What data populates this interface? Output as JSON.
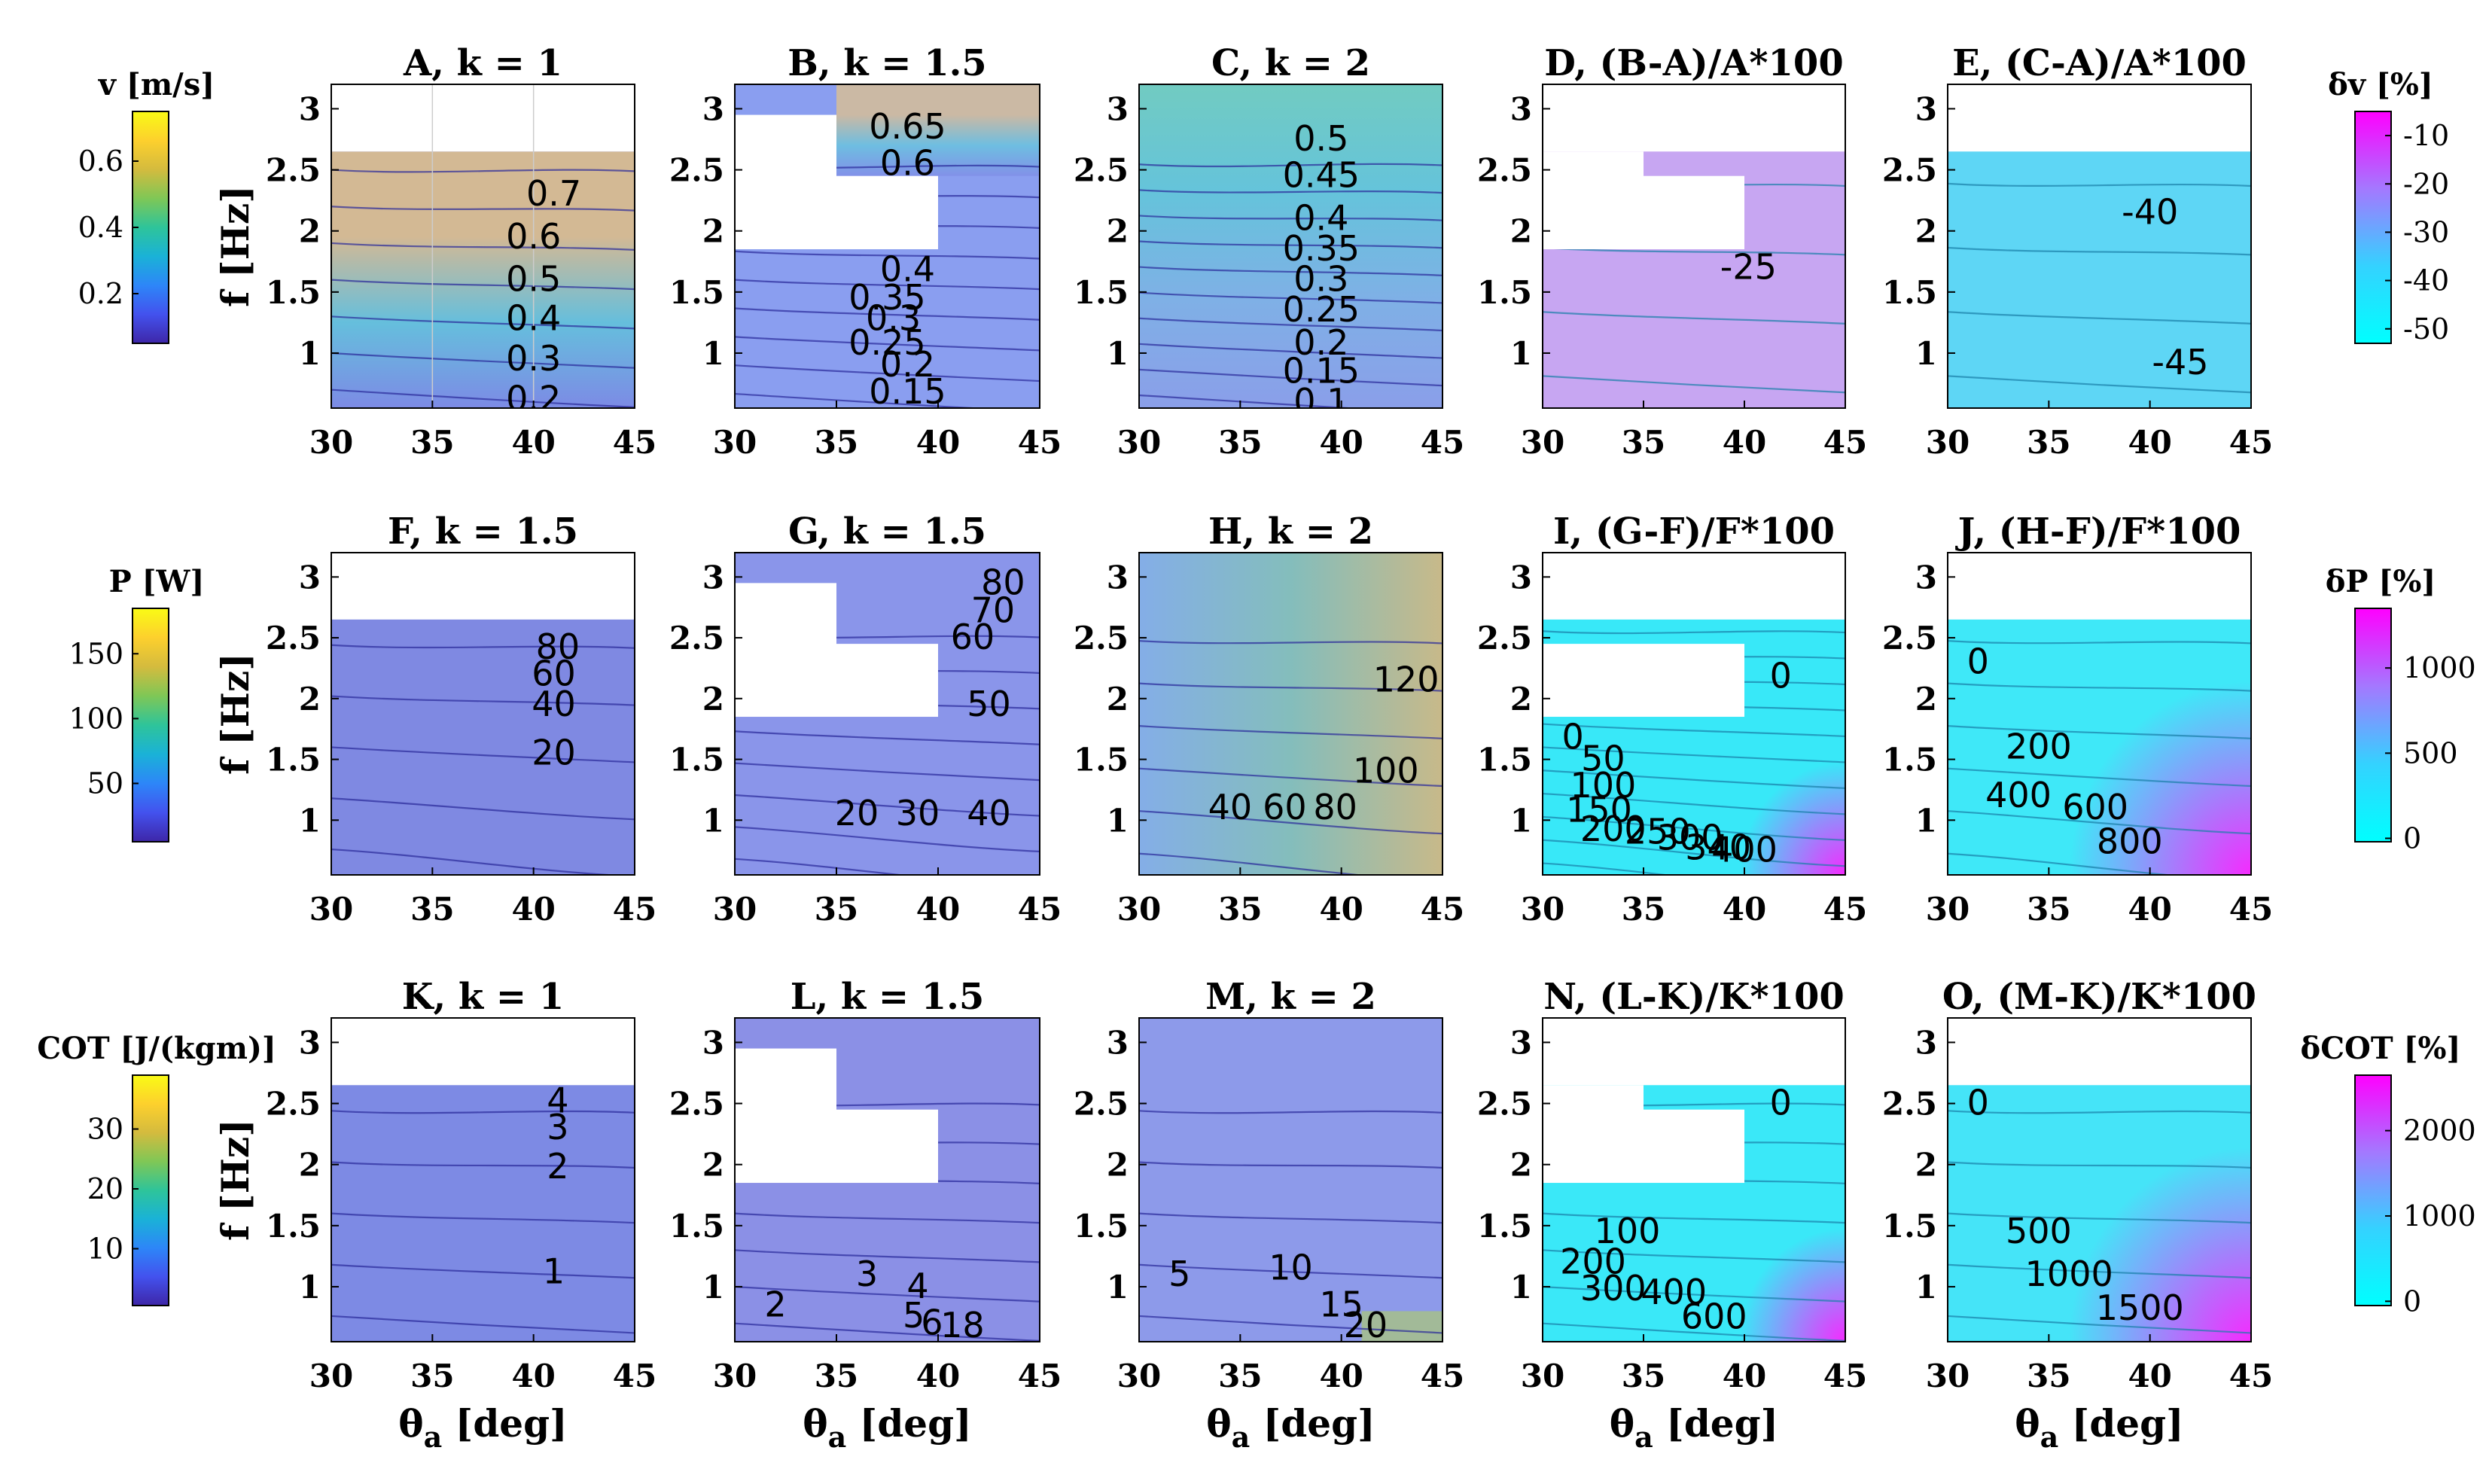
{
  "figure": {
    "rows": [
      {
        "colorbar_left": {
          "label": "v [m/s]",
          "ticks": [
            0.2,
            0.4,
            0.6
          ],
          "range": [
            0.05,
            0.75
          ],
          "palette": "parula"
        },
        "colorbar_right": {
          "label": "δv [%]",
          "ticks": [
            -10,
            -20,
            -30,
            -40,
            -50
          ],
          "range": [
            -53,
            -5
          ],
          "palette": "cool"
        }
      },
      {
        "colorbar_left": {
          "label": "P [W]",
          "ticks": [
            50,
            100,
            150
          ],
          "range": [
            5,
            185
          ],
          "palette": "parula"
        },
        "colorbar_right": {
          "label": "δP [%]",
          "ticks": [
            0,
            500,
            1000
          ],
          "range": [
            -20,
            1350
          ],
          "palette": "cool"
        }
      },
      {
        "colorbar_left": {
          "label": "COT [J/(kgm)]",
          "ticks": [
            10,
            20,
            30
          ],
          "range": [
            0.5,
            39
          ],
          "palette": "parula"
        },
        "colorbar_right": {
          "label": "δCOT [%]",
          "ticks": [
            0,
            1000,
            2000
          ],
          "range": [
            -50,
            2650
          ],
          "palette": "cool"
        }
      }
    ],
    "x_ticks": [
      30,
      35,
      40,
      45
    ],
    "y_ticks": [
      1,
      1.5,
      2,
      2.5,
      3
    ],
    "ylabel": "f [Hz]",
    "xlabel": "θ",
    "xlabel_sub": "a",
    "xlabel_unit": " [deg]"
  },
  "chart_data": [
    {
      "type": "heatmap",
      "title": "A, k = 1",
      "xlim": [
        30,
        45
      ],
      "ylim": [
        0.55,
        3.2
      ],
      "palette": "parula",
      "valid_mask": "f ≤ 2.65 Hz",
      "base_color": "#7b8bea",
      "contour_labels": [
        {
          "text": "0.7",
          "x": 41,
          "y": 2.3
        },
        {
          "text": "0.6",
          "x": 40,
          "y": 1.95
        },
        {
          "text": "0.5",
          "x": 40,
          "y": 1.6
        },
        {
          "text": "0.4",
          "x": 40,
          "y": 1.28
        },
        {
          "text": "0.3",
          "x": 40,
          "y": 0.95
        },
        {
          "text": "0.2",
          "x": 40,
          "y": 0.62
        }
      ]
    },
    {
      "type": "heatmap",
      "title": "B, k = 1.5",
      "xlim": [
        30,
        45
      ],
      "ylim": [
        0.55,
        3.2
      ],
      "palette": "parula",
      "valid_mask": "excludes [30,35]×[1.85,2.95] and [35,40]×[1.85,2.45]",
      "base_color": "#8a9ef0",
      "contour_labels": [
        {
          "text": "0.65",
          "x": 38.5,
          "y": 2.85
        },
        {
          "text": "0.6",
          "x": 38.5,
          "y": 2.55
        },
        {
          "text": "0.4",
          "x": 38.5,
          "y": 1.68
        },
        {
          "text": "0.35",
          "x": 37.5,
          "y": 1.45
        },
        {
          "text": "0.3",
          "x": 37.8,
          "y": 1.28
        },
        {
          "text": "0.25",
          "x": 37.5,
          "y": 1.08
        },
        {
          "text": "0.2",
          "x": 38.5,
          "y": 0.9
        },
        {
          "text": "0.15",
          "x": 38.5,
          "y": 0.68
        }
      ]
    },
    {
      "type": "heatmap",
      "title": "C, k = 2",
      "xlim": [
        30,
        45
      ],
      "ylim": [
        0.55,
        3.2
      ],
      "palette": "parula",
      "valid_mask": "full",
      "base_color": "#7fb0e6",
      "contour_labels": [
        {
          "text": "0.5",
          "x": 39,
          "y": 2.75
        },
        {
          "text": "0.45",
          "x": 39,
          "y": 2.45
        },
        {
          "text": "0.4",
          "x": 39,
          "y": 2.1
        },
        {
          "text": "0.35",
          "x": 39,
          "y": 1.85
        },
        {
          "text": "0.3",
          "x": 39,
          "y": 1.6
        },
        {
          "text": "0.25",
          "x": 39,
          "y": 1.35
        },
        {
          "text": "0.2",
          "x": 39,
          "y": 1.08
        },
        {
          "text": "0.15",
          "x": 39,
          "y": 0.85
        },
        {
          "text": "0.1",
          "x": 39,
          "y": 0.6
        }
      ]
    },
    {
      "type": "heatmap",
      "title": "D, (B-A)/A*100",
      "xlim": [
        30,
        45
      ],
      "ylim": [
        0.55,
        3.2
      ],
      "palette": "cool",
      "valid_mask": "f ≤ 2.65 Hz, excludes [30,35]×[1.85,2.65] and [35,40]×[1.85,2.45]",
      "base_color": "#c7a6f2",
      "contour_labels": [
        {
          "text": "-25",
          "x": 40.2,
          "y": 1.7
        }
      ]
    },
    {
      "type": "heatmap",
      "title": "E, (C-A)/A*100",
      "xlim": [
        30,
        45
      ],
      "ylim": [
        0.55,
        3.2
      ],
      "palette": "cool",
      "valid_mask": "f ≤ 2.65 Hz",
      "base_color": "#5ed6f5",
      "contour_labels": [
        {
          "text": "-40",
          "x": 40,
          "y": 2.15
        },
        {
          "text": "-45",
          "x": 41.5,
          "y": 0.92
        }
      ]
    },
    {
      "type": "heatmap",
      "title": "F, k = 1.5",
      "xlim": [
        30,
        45
      ],
      "ylim": [
        0.55,
        3.2
      ],
      "palette": "parula",
      "valid_mask": "f ≤ 2.65 Hz",
      "base_color": "#7f89e2",
      "contour_labels": [
        {
          "text": "80",
          "x": 41.2,
          "y": 2.42
        },
        {
          "text": "60",
          "x": 41,
          "y": 2.2
        },
        {
          "text": "40",
          "x": 41,
          "y": 1.95
        },
        {
          "text": "20",
          "x": 41,
          "y": 1.55
        }
      ]
    },
    {
      "type": "heatmap",
      "title": "G, k = 1.5",
      "xlim": [
        30,
        45
      ],
      "ylim": [
        0.55,
        3.2
      ],
      "palette": "parula",
      "valid_mask": "excludes [30,35]×[1.85,2.95] and [35,40]×[1.85,2.45]",
      "base_color": "#8a95ea",
      "contour_labels": [
        {
          "text": "80",
          "x": 43.2,
          "y": 2.95
        },
        {
          "text": "70",
          "x": 42.7,
          "y": 2.72
        },
        {
          "text": "60",
          "x": 41.7,
          "y": 2.5
        },
        {
          "text": "50",
          "x": 42.5,
          "y": 1.95
        },
        {
          "text": "40",
          "x": 42.5,
          "y": 1.05
        },
        {
          "text": "30",
          "x": 39,
          "y": 1.05
        },
        {
          "text": "20",
          "x": 36,
          "y": 1.05
        }
      ]
    },
    {
      "type": "heatmap",
      "title": "H, k = 2",
      "xlim": [
        30,
        45
      ],
      "ylim": [
        0.55,
        3.2
      ],
      "palette": "parula",
      "valid_mask": "full",
      "base_color": "#8fa9ea",
      "contour_labels": [
        {
          "text": "120",
          "x": 43.2,
          "y": 2.15
        },
        {
          "text": "100",
          "x": 42.2,
          "y": 1.4
        },
        {
          "text": "80",
          "x": 39.7,
          "y": 1.1
        },
        {
          "text": "60",
          "x": 37.2,
          "y": 1.1
        },
        {
          "text": "40",
          "x": 34.5,
          "y": 1.1
        }
      ]
    },
    {
      "type": "heatmap",
      "title": "I, (G-F)/F*100",
      "xlim": [
        30,
        45
      ],
      "ylim": [
        0.55,
        3.2
      ],
      "palette": "cool",
      "valid_mask": "f ≤ 2.65 Hz, excludes [30,35]×[1.85,2.45] and [35,40]×[1.85,2.45]",
      "base_color": "#38e8f8",
      "contour_labels": [
        {
          "text": "0",
          "x": 41.8,
          "y": 2.18
        },
        {
          "text": "0",
          "x": 31.5,
          "y": 1.68
        },
        {
          "text": "50",
          "x": 33,
          "y": 1.5
        },
        {
          "text": "100",
          "x": 33,
          "y": 1.28
        },
        {
          "text": "150",
          "x": 32.8,
          "y": 1.08
        },
        {
          "text": "200",
          "x": 33.5,
          "y": 0.92
        },
        {
          "text": "250",
          "x": 35.7,
          "y": 0.9
        },
        {
          "text": "300",
          "x": 37.3,
          "y": 0.85
        },
        {
          "text": "340",
          "x": 38.7,
          "y": 0.77
        },
        {
          "text": "400",
          "x": 40,
          "y": 0.75
        }
      ]
    },
    {
      "type": "heatmap",
      "title": "J, (H-F)/F*100",
      "xlim": [
        30,
        45
      ],
      "ylim": [
        0.55,
        3.2
      ],
      "palette": "cool",
      "valid_mask": "f ≤ 2.65 Hz",
      "base_color": "#3fe8f8",
      "contour_labels": [
        {
          "text": "0",
          "x": 31.5,
          "y": 2.3
        },
        {
          "text": "200",
          "x": 34.5,
          "y": 1.6
        },
        {
          "text": "400",
          "x": 33.5,
          "y": 1.2
        },
        {
          "text": "600",
          "x": 37.3,
          "y": 1.1
        },
        {
          "text": "800",
          "x": 39,
          "y": 0.82
        }
      ]
    },
    {
      "type": "heatmap",
      "title": "K, k = 1",
      "xlim": [
        30,
        45
      ],
      "ylim": [
        0.55,
        3.2
      ],
      "palette": "parula",
      "valid_mask": "f ≤ 2.65 Hz",
      "base_color": "#7d8ae4",
      "contour_labels": [
        {
          "text": "4",
          "x": 41.2,
          "y": 2.52
        },
        {
          "text": "3",
          "x": 41.2,
          "y": 2.3
        },
        {
          "text": "2",
          "x": 41.2,
          "y": 1.98
        },
        {
          "text": "1",
          "x": 41,
          "y": 1.12
        }
      ]
    },
    {
      "type": "heatmap",
      "title": "L, k = 1.5",
      "xlim": [
        30,
        45
      ],
      "ylim": [
        0.55,
        3.2
      ],
      "palette": "parula",
      "valid_mask": "excludes [30,35]×[1.85,2.95] and [35,40]×[1.85,2.45]",
      "base_color": "#8b90e6",
      "contour_labels": [
        {
          "text": "2",
          "x": 32,
          "y": 0.85
        },
        {
          "text": "3",
          "x": 36.5,
          "y": 1.1
        },
        {
          "text": "4",
          "x": 39,
          "y": 1.0
        },
        {
          "text": "5",
          "x": 38.8,
          "y": 0.76
        },
        {
          "text": "6",
          "x": 39.7,
          "y": 0.7
        },
        {
          "text": "18",
          "x": 41.2,
          "y": 0.68
        }
      ]
    },
    {
      "type": "heatmap",
      "title": "M, k = 2",
      "xlim": [
        30,
        45
      ],
      "ylim": [
        0.55,
        3.2
      ],
      "palette": "parula",
      "valid_mask": "full",
      "base_color": "#8d9aea",
      "contour_labels": [
        {
          "text": "5",
          "x": 32,
          "y": 1.1
        },
        {
          "text": "10",
          "x": 37.5,
          "y": 1.15
        },
        {
          "text": "15",
          "x": 40,
          "y": 0.85
        },
        {
          "text": "20",
          "x": 41.2,
          "y": 0.68
        }
      ]
    },
    {
      "type": "heatmap",
      "title": "N, (L-K)/K*100",
      "xlim": [
        30,
        45
      ],
      "ylim": [
        0.55,
        3.2
      ],
      "palette": "cool",
      "valid_mask": "f ≤ 2.65 Hz, excludes [30,35]×[1.85,2.65] and [35,40]×[1.85,2.45]",
      "base_color": "#3ae8f8",
      "contour_labels": [
        {
          "text": "0",
          "x": 41.8,
          "y": 2.5
        },
        {
          "text": "100",
          "x": 34.2,
          "y": 1.45
        },
        {
          "text": "200",
          "x": 32.5,
          "y": 1.2
        },
        {
          "text": "300",
          "x": 33.5,
          "y": 0.98
        },
        {
          "text": "400",
          "x": 36.5,
          "y": 0.95
        },
        {
          "text": "600",
          "x": 38.5,
          "y": 0.75
        }
      ]
    },
    {
      "type": "heatmap",
      "title": "O, (M-K)/K*100",
      "xlim": [
        30,
        45
      ],
      "ylim": [
        0.55,
        3.2
      ],
      "palette": "cool",
      "valid_mask": "f ≤ 2.65 Hz",
      "base_color": "#45e4f8",
      "contour_labels": [
        {
          "text": "0",
          "x": 31.5,
          "y": 2.5
        },
        {
          "text": "500",
          "x": 34.5,
          "y": 1.45
        },
        {
          "text": "1000",
          "x": 36,
          "y": 1.1
        },
        {
          "text": "1500",
          "x": 39.5,
          "y": 0.82
        }
      ]
    }
  ]
}
